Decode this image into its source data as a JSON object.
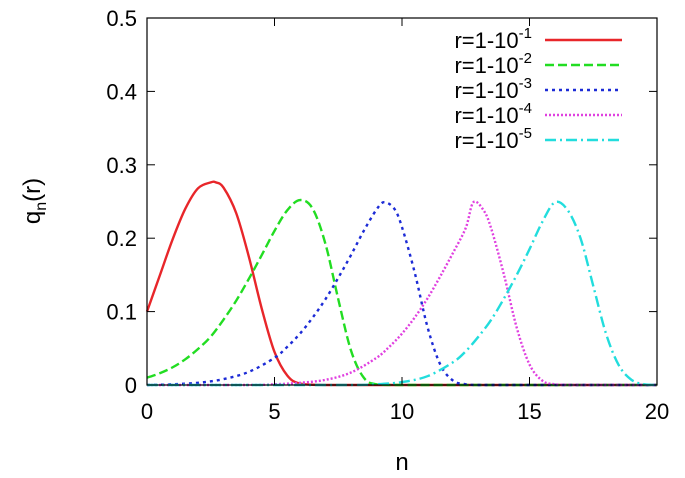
{
  "chart_data": {
    "type": "line",
    "title": "",
    "xlabel": "n",
    "ylabel": {
      "base": "q",
      "subscript": "n",
      "suffix": "(r)"
    },
    "xlim": [
      0,
      20
    ],
    "ylim": [
      0,
      0.5
    ],
    "xticks": [
      0,
      5,
      10,
      15,
      20
    ],
    "xtick_labels": [
      "0",
      "5",
      "10",
      "15",
      "20"
    ],
    "yticks": [
      0,
      0.1,
      0.2,
      0.3,
      0.4,
      0.5
    ],
    "ytick_labels": [
      "0",
      "0.1",
      "0.2",
      "0.3",
      "0.4",
      "0.5"
    ],
    "grid": false,
    "legend_position": "top-right",
    "series": [
      {
        "name": "r=1-10-1",
        "label_base": "r=1-10",
        "label_exp": "-1",
        "color": "#e8262a",
        "dash": "solid",
        "x": [
          0,
          0.5,
          1,
          1.5,
          2,
          2.5,
          2.7,
          3,
          3.5,
          4,
          4.5,
          5,
          5.5,
          6,
          7,
          8,
          10,
          12,
          14,
          16,
          18,
          20
        ],
        "y": [
          0.1,
          0.149,
          0.198,
          0.24,
          0.268,
          0.276,
          0.276,
          0.269,
          0.234,
          0.174,
          0.104,
          0.045,
          0.013,
          0.002,
          0.0,
          0.0,
          0.0,
          0.0,
          0.0,
          0.0,
          0.0,
          0.0
        ]
      },
      {
        "name": "r=1-10-2",
        "label_base": "r=1-10",
        "label_exp": "-2",
        "color": "#22dd22",
        "dash": "dashed",
        "x": [
          0,
          0.5,
          1,
          1.5,
          2,
          2.5,
          3,
          3.5,
          4,
          4.5,
          5,
          5.5,
          6,
          6.5,
          7,
          7.5,
          8,
          8.5,
          9,
          10,
          12,
          14,
          16,
          18,
          20
        ],
        "y": [
          0.01,
          0.016,
          0.024,
          0.035,
          0.049,
          0.066,
          0.089,
          0.115,
          0.145,
          0.177,
          0.21,
          0.238,
          0.252,
          0.24,
          0.192,
          0.117,
          0.047,
          0.01,
          0.001,
          0.0,
          0.0,
          0.0,
          0.0,
          0.0,
          0.0
        ]
      },
      {
        "name": "r=1-10-3",
        "label_base": "r=1-10",
        "label_exp": "-3",
        "color": "#1c2bd6",
        "dash": "dotted",
        "x": [
          0,
          1,
          2,
          3,
          4,
          5,
          5.5,
          6,
          6.5,
          7,
          7.5,
          8,
          8.5,
          9,
          9.3,
          9.7,
          10,
          10.5,
          11,
          11.5,
          12,
          12.5,
          13,
          14,
          16,
          18,
          20
        ],
        "y": [
          0.0,
          0.001,
          0.003,
          0.008,
          0.018,
          0.037,
          0.052,
          0.07,
          0.092,
          0.117,
          0.146,
          0.177,
          0.21,
          0.239,
          0.249,
          0.24,
          0.215,
          0.153,
          0.079,
          0.028,
          0.006,
          0.001,
          0.0,
          0.0,
          0.0,
          0.0,
          0.0
        ]
      },
      {
        "name": "r=1-10-4",
        "label_base": "r=1-10",
        "label_exp": "-4",
        "color": "#e040e0",
        "dash": "densedot",
        "x": [
          0,
          4,
          5,
          6,
          7,
          8,
          9,
          9.5,
          10,
          10.5,
          11,
          11.5,
          12,
          12.5,
          12.8,
          13.2,
          13.5,
          14,
          14.5,
          15,
          15.5,
          16,
          17,
          18,
          20
        ],
        "y": [
          0.0,
          0.0,
          0.001,
          0.003,
          0.007,
          0.017,
          0.037,
          0.052,
          0.07,
          0.092,
          0.118,
          0.148,
          0.18,
          0.214,
          0.249,
          0.238,
          0.213,
          0.15,
          0.078,
          0.028,
          0.006,
          0.001,
          0.0,
          0.0,
          0.0
        ]
      },
      {
        "name": "r=1-10-5",
        "label_base": "r=1-10",
        "label_exp": "-5",
        "color": "#22dddd",
        "dash": "dashdot",
        "x": [
          0,
          6,
          8,
          9,
          10,
          11,
          12,
          12.5,
          13,
          13.5,
          14,
          14.5,
          15,
          15.5,
          16,
          16.5,
          17,
          17.5,
          18,
          18.5,
          19,
          19.5,
          20
        ],
        "y": [
          0.0,
          0.0,
          0.0,
          0.001,
          0.004,
          0.012,
          0.031,
          0.046,
          0.066,
          0.089,
          0.118,
          0.15,
          0.185,
          0.222,
          0.249,
          0.238,
          0.2,
          0.135,
          0.07,
          0.027,
          0.007,
          0.001,
          0.0
        ]
      }
    ]
  }
}
